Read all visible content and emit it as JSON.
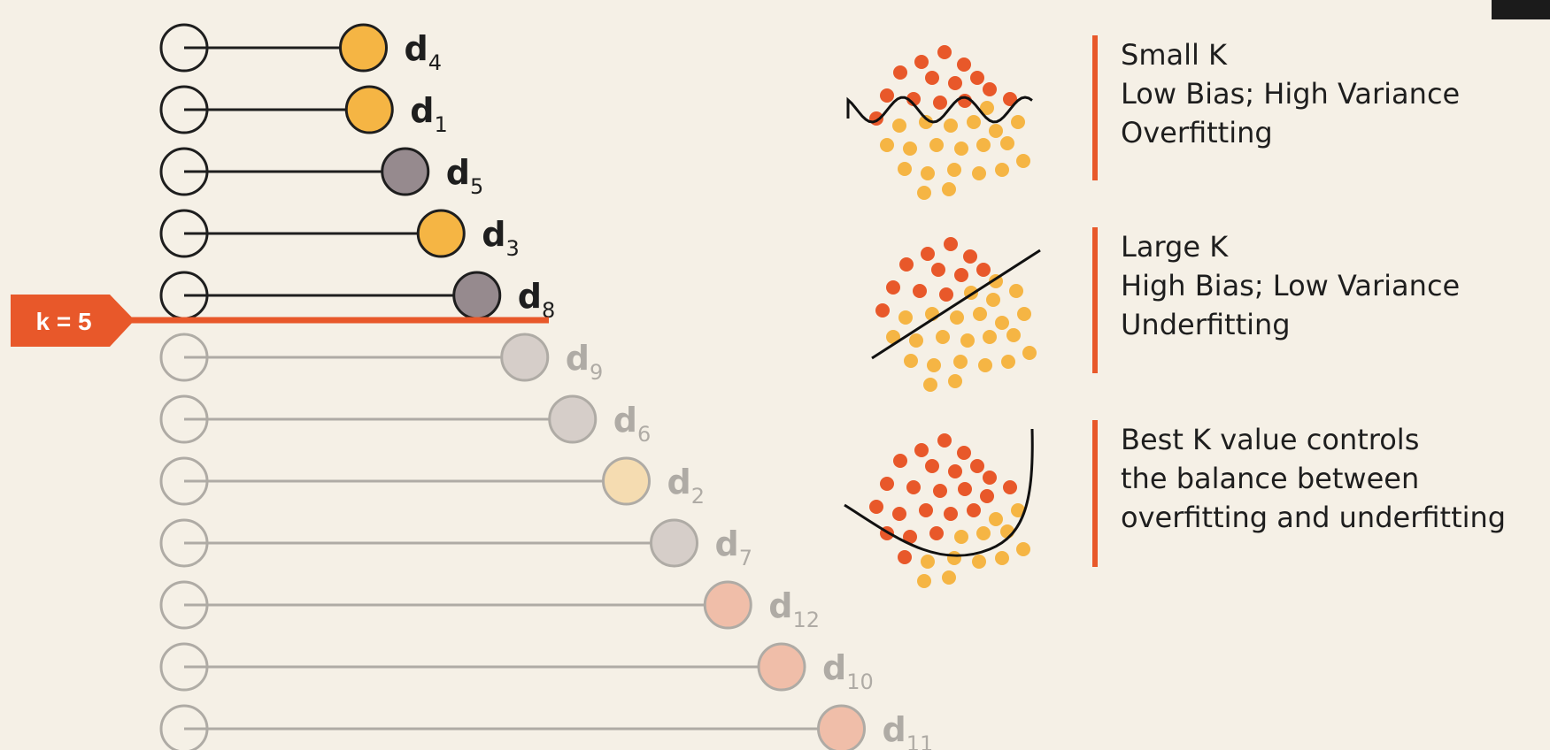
{
  "colors": {
    "background": "#f5f0e6",
    "accent": "#e8582a",
    "class_orange": "#f5b544",
    "class_red": "#e8582a",
    "neutral_gray": "#968a8e",
    "faded_stroke": "#d5d2cb",
    "dark": "#1e1e1e"
  },
  "k_label": "k = 5",
  "k_value": 5,
  "neighbors": [
    {
      "name": "d",
      "sub": "4",
      "color": "orange",
      "rank": 1,
      "distance": 0.3
    },
    {
      "name": "d",
      "sub": "1",
      "color": "orange",
      "rank": 2,
      "distance": 0.31
    },
    {
      "name": "d",
      "sub": "5",
      "color": "gray",
      "rank": 3,
      "distance": 0.37
    },
    {
      "name": "d",
      "sub": "3",
      "color": "orange",
      "rank": 4,
      "distance": 0.43
    },
    {
      "name": "d",
      "sub": "8",
      "color": "gray",
      "rank": 5,
      "distance": 0.49
    },
    {
      "name": "d",
      "sub": "9",
      "color": "gray",
      "rank": 6,
      "distance": 0.57
    },
    {
      "name": "d",
      "sub": "6",
      "color": "gray",
      "rank": 7,
      "distance": 0.65
    },
    {
      "name": "d",
      "sub": "2",
      "color": "orange",
      "rank": 8,
      "distance": 0.74
    },
    {
      "name": "d",
      "sub": "7",
      "color": "gray",
      "rank": 9,
      "distance": 0.82
    },
    {
      "name": "d",
      "sub": "12",
      "color": "red",
      "rank": 10,
      "distance": 0.91
    },
    {
      "name": "d",
      "sub": "10",
      "color": "red",
      "rank": 11,
      "distance": 1.0
    },
    {
      "name": "d",
      "sub": "11",
      "color": "red",
      "rank": 12,
      "distance": 1.1
    }
  ],
  "sections": {
    "small": {
      "lines": [
        "Small K",
        "Low Bias; High Variance",
        "Overfitting"
      ]
    },
    "large": {
      "lines": [
        "Large K",
        "High Bias; Low Variance",
        "Underfitting"
      ]
    },
    "best": {
      "lines": [
        "Best K value controls",
        "the balance between",
        "overfitting and underfitting"
      ]
    }
  },
  "boundary_types": {
    "small": "wavy",
    "large": "linear",
    "best": "curved"
  }
}
